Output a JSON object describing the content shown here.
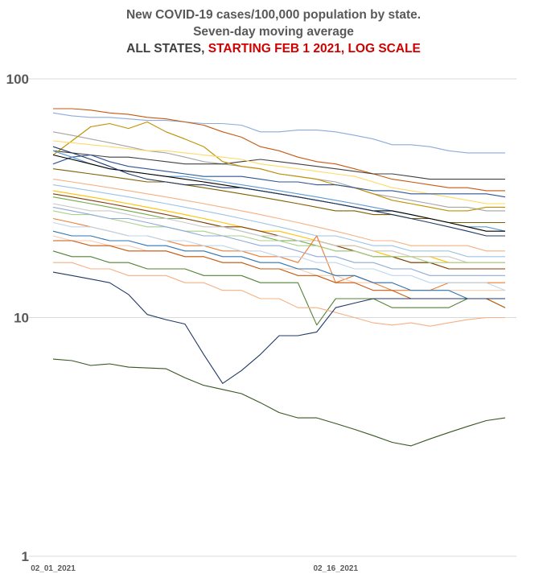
{
  "title": {
    "line1": "New COVID-19 cases/100,000 population by state.",
    "line2": "Seven-day moving average",
    "line3_part1": "ALL STATES, ",
    "line3_part2": "STARTING FEB 1 2021, LOG SCALE"
  },
  "colors": {
    "title": "#595959",
    "accent": "#d00000",
    "grid": "#d9d9d9"
  },
  "chart_data": {
    "type": "line",
    "y_scale": "log",
    "ylim": [
      1,
      100
    ],
    "y_ticks": [
      "100",
      "10",
      "1"
    ],
    "x_ticks": [
      "02_01_2021",
      "02_16_2021"
    ],
    "grid": "horizontal",
    "legend": "none",
    "x_dates": [
      "2021-02-01",
      "2021-02-02",
      "2021-02-03",
      "2021-02-04",
      "2021-02-05",
      "2021-02-06",
      "2021-02-07",
      "2021-02-08",
      "2021-02-09",
      "2021-02-10",
      "2021-02-11",
      "2021-02-12",
      "2021-02-13",
      "2021-02-14",
      "2021-02-15",
      "2021-02-16",
      "2021-02-17",
      "2021-02-18",
      "2021-02-19",
      "2021-02-20",
      "2021-02-21",
      "2021-02-22",
      "2021-02-23",
      "2021-02-24",
      "2021-02-25"
    ],
    "series": [
      {
        "color": "#8eaadb",
        "values": [
          72,
          70,
          69,
          69,
          68,
          67,
          67,
          66,
          65,
          65,
          64,
          60,
          60,
          61,
          61,
          60,
          58,
          56,
          53,
          53,
          52,
          50,
          49,
          49,
          49
        ]
      },
      {
        "color": "#c55a11",
        "values": [
          75,
          75,
          74,
          72,
          71,
          69,
          68,
          66,
          64,
          60,
          57,
          52,
          50,
          47,
          45,
          44,
          42,
          40,
          38,
          37,
          36,
          35,
          35,
          34,
          34
        ]
      },
      {
        "color": "#a5a5a5",
        "values": [
          60,
          58,
          56,
          54,
          52,
          50,
          49,
          47,
          45,
          44,
          43,
          42,
          40,
          39,
          38,
          37,
          35,
          33,
          32,
          31,
          30,
          29,
          29,
          28,
          28
        ]
      },
      {
        "color": "#404040",
        "values": [
          50,
          49,
          48,
          47,
          47,
          46,
          45,
          44,
          44,
          44,
          45,
          46,
          45,
          44,
          43,
          42,
          41,
          40,
          40,
          39,
          38,
          38,
          38,
          38,
          38
        ]
      },
      {
        "color": "#bf9000",
        "values": [
          48,
          55,
          63,
          65,
          62,
          66,
          60,
          56,
          52,
          45,
          43,
          42,
          40,
          39,
          38,
          36,
          35,
          33,
          31,
          30,
          29,
          28,
          28,
          29,
          29
        ]
      },
      {
        "color": "#ffd966",
        "values": [
          55,
          54,
          53,
          52,
          51,
          50,
          50,
          49,
          48,
          47,
          46,
          44,
          43,
          42,
          41,
          40,
          39,
          37,
          35,
          34,
          33,
          32,
          31,
          30,
          30
        ]
      },
      {
        "color": "#2f5597",
        "values": [
          44,
          47,
          48,
          45,
          43,
          42,
          41,
          40,
          39,
          39,
          39,
          38,
          37,
          37,
          36,
          36,
          35,
          34,
          34,
          33,
          33,
          33,
          33,
          33,
          32
        ]
      },
      {
        "color": "#5b9bd5",
        "values": [
          50,
          47,
          44,
          42,
          41,
          40,
          39,
          39,
          38,
          37,
          36,
          35,
          34,
          33,
          32,
          31,
          30,
          29,
          28,
          27,
          26,
          25,
          24,
          24,
          23
        ]
      },
      {
        "color": "#7f6000",
        "values": [
          42,
          41,
          40,
          39,
          38,
          37,
          37,
          36,
          35,
          34,
          33,
          32,
          31,
          30,
          29,
          28,
          28,
          27,
          27,
          26,
          26,
          25,
          25,
          25,
          25
        ]
      },
      {
        "color": "#000000",
        "values": [
          48,
          46,
          44,
          42,
          41,
          40,
          39,
          38,
          37,
          36,
          35,
          34,
          33,
          32,
          31,
          30,
          29,
          28,
          28,
          27,
          26,
          25,
          24,
          23,
          23
        ]
      },
      {
        "color": "#1f3864",
        "values": [
          52,
          49,
          46,
          43,
          40,
          38,
          37,
          36,
          36,
          35,
          35,
          34,
          33,
          32,
          31,
          30,
          29,
          28,
          27,
          26,
          25,
          24,
          23,
          22,
          22
        ]
      },
      {
        "color": "#f4b183",
        "values": [
          38,
          37,
          36,
          35,
          34,
          33,
          32,
          31,
          30,
          29,
          28,
          27,
          26,
          25,
          24,
          23,
          22,
          21,
          21,
          20,
          20,
          20,
          20,
          19,
          19
        ]
      },
      {
        "color": "#9dc3e6",
        "values": [
          36,
          35,
          34,
          33,
          32,
          31,
          30,
          29,
          28,
          27,
          26,
          25,
          24,
          23,
          22,
          22,
          21,
          20,
          20,
          19,
          19,
          19,
          18,
          18,
          18
        ]
      },
      {
        "color": "#ffc000",
        "values": [
          34,
          33,
          32,
          31,
          30,
          29,
          28,
          27,
          26,
          25,
          24,
          23,
          23,
          22,
          21,
          20,
          20,
          19,
          18,
          18,
          18,
          17,
          17,
          17,
          17
        ]
      },
      {
        "color": "#70ad47",
        "values": [
          32,
          31,
          30,
          29,
          28,
          27,
          26,
          26,
          25,
          24,
          23,
          22,
          21,
          21,
          20,
          19,
          19,
          18,
          18,
          17,
          17,
          16,
          16,
          16,
          16
        ]
      },
      {
        "color": "#843c0c",
        "values": [
          33,
          32,
          31,
          30,
          29,
          28,
          27,
          26,
          25,
          24,
          24,
          23,
          22,
          21,
          21,
          20,
          19,
          18,
          18,
          17,
          17,
          16,
          16,
          16,
          16
        ]
      },
      {
        "color": "#c9c9c9",
        "values": [
          30,
          29,
          28,
          28,
          27,
          26,
          26,
          25,
          24,
          24,
          23,
          22,
          22,
          21,
          21,
          20,
          20,
          19,
          19,
          18,
          18,
          18,
          17,
          17,
          17
        ]
      },
      {
        "color": "#a9d18e",
        "values": [
          28,
          27,
          27,
          26,
          25,
          24,
          24,
          23,
          23,
          22,
          22,
          21,
          21,
          20,
          20,
          19,
          19,
          18,
          18,
          18,
          17,
          17,
          17,
          17,
          17
        ]
      },
      {
        "color": "#ed7d31",
        "values": [
          26,
          25,
          24,
          23,
          22,
          22,
          21,
          20,
          20,
          19,
          19,
          18,
          18,
          17,
          22,
          14,
          15,
          14,
          13,
          13,
          13,
          14,
          14,
          14,
          14
        ]
      },
      {
        "color": "#8faadc",
        "values": [
          29,
          28,
          27,
          26,
          26,
          25,
          24,
          23,
          22,
          22,
          21,
          20,
          20,
          19,
          18,
          18,
          17,
          17,
          16,
          16,
          15,
          15,
          15,
          15,
          15
        ]
      },
      {
        "color": "#548235",
        "values": [
          19,
          18,
          18,
          17,
          17,
          16,
          16,
          16,
          15,
          15,
          15,
          14,
          14,
          14,
          9.3,
          12,
          12,
          12,
          11,
          11,
          11,
          11,
          12,
          12,
          11
        ]
      },
      {
        "color": "#f8cbad",
        "values": [
          22,
          21,
          21,
          20,
          20,
          19,
          19,
          18,
          18,
          17,
          17,
          16,
          16,
          16,
          15,
          15,
          14,
          14,
          14,
          13,
          13,
          13,
          13,
          13,
          13
        ]
      },
      {
        "color": "#2e75b6",
        "values": [
          23,
          22,
          22,
          21,
          21,
          20,
          20,
          19,
          19,
          18,
          18,
          17,
          17,
          16,
          16,
          15,
          15,
          14,
          14,
          13,
          13,
          13,
          12,
          12,
          12
        ]
      },
      {
        "color": "#bdd7ee",
        "values": [
          25,
          24,
          24,
          23,
          22,
          22,
          21,
          21,
          20,
          20,
          19,
          19,
          18,
          18,
          17,
          17,
          16,
          16,
          15,
          15,
          14,
          14,
          14,
          14,
          13
        ]
      },
      {
        "color": "#c55a11",
        "values": [
          21,
          21,
          20,
          20,
          19,
          19,
          19,
          18,
          18,
          17,
          17,
          16,
          16,
          15,
          15,
          14,
          14,
          13,
          13,
          12,
          12,
          12,
          12,
          12,
          11
        ]
      },
      {
        "color": "#f4b183",
        "values": [
          17,
          17,
          16,
          16,
          15,
          15,
          15,
          14,
          14,
          13,
          13,
          12,
          12,
          11,
          11,
          10.5,
          10,
          9.5,
          9.3,
          9.5,
          9.2,
          9.5,
          9.8,
          10,
          10
        ]
      },
      {
        "color": "#1f3864",
        "values": [
          15.5,
          15,
          14.5,
          14,
          12.5,
          10.3,
          9.8,
          9.4,
          7,
          5.3,
          6,
          7,
          8.4,
          8.4,
          8.7,
          11,
          11.5,
          12,
          12,
          12,
          12,
          12,
          12,
          12,
          12
        ]
      },
      {
        "color": "#375623",
        "values": [
          6.7,
          6.6,
          6.3,
          6.4,
          6.2,
          6.15,
          6.1,
          5.6,
          5.2,
          5,
          4.8,
          4.4,
          4,
          3.8,
          3.8,
          3.6,
          3.4,
          3.2,
          3.0,
          2.9,
          3.1,
          3.3,
          3.5,
          3.7,
          3.8
        ]
      }
    ]
  }
}
